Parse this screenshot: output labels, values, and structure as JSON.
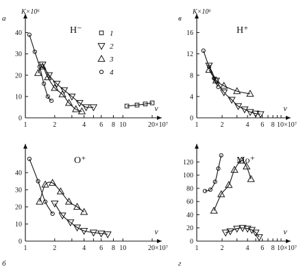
{
  "figure": {
    "ylabel": "K×10⁶",
    "xlabel": "v",
    "xunit": "×10⁷"
  },
  "chart_data": [
    {
      "id": "a",
      "panel_label": "а",
      "type": "scatter",
      "ion": "H⁻",
      "ylabel": "K×10⁶",
      "xlabel": "v",
      "xscale": "log",
      "xlim": [
        1,
        20
      ],
      "ylim": [
        0,
        45
      ],
      "xticks": [
        1,
        2,
        3,
        4,
        5,
        6,
        8,
        10,
        20
      ],
      "xticklabels": [
        {
          "v": 1,
          "t": "1"
        },
        {
          "v": 2,
          "t": "2"
        },
        {
          "v": 4,
          "t": "4"
        },
        {
          "v": 6,
          "t": "6"
        },
        {
          "v": 8,
          "t": "8"
        },
        {
          "v": 10,
          "t": "10"
        },
        {
          "v": 20,
          "t": "20×10⁷"
        }
      ],
      "yticks": [
        0,
        10,
        20,
        30,
        40
      ],
      "legend": [
        {
          "label": "1",
          "marker": "square"
        },
        {
          "label": "2",
          "marker": "triangle-down"
        },
        {
          "label": "3",
          "marker": "triangle-up"
        },
        {
          "label": "4",
          "marker": "circle"
        }
      ],
      "series": [
        {
          "marker": "circle",
          "x": [
            1.1,
            1.25,
            1.4,
            1.55,
            1.7,
            1.85
          ],
          "y": [
            39,
            31,
            24,
            16,
            10,
            8
          ]
        },
        {
          "marker": "triangle-up",
          "x": [
            1.35,
            1.5,
            1.7,
            2.0,
            2.4,
            2.8,
            3.3,
            3.8
          ],
          "y": [
            21,
            24,
            19,
            14,
            11,
            7,
            4,
            3
          ]
        },
        {
          "marker": "triangle-down",
          "x": [
            1.5,
            1.75,
            2.1,
            2.5,
            3.0,
            3.6,
            4.2,
            5.0
          ],
          "y": [
            25,
            20,
            16,
            13,
            10,
            7,
            5,
            5
          ]
        },
        {
          "marker": "square",
          "x": [
            11,
            14,
            17,
            20
          ],
          "y": [
            5.5,
            6,
            6.5,
            7
          ]
        }
      ]
    },
    {
      "id": "b",
      "panel_label": "б",
      "type": "scatter",
      "ion": "O⁺",
      "ylabel": "",
      "xlabel": "v",
      "xscale": "log",
      "xlim": [
        1,
        20
      ],
      "ylim": [
        0,
        52
      ],
      "xticks": [
        1,
        2,
        3,
        4,
        5,
        6,
        8,
        10,
        20
      ],
      "xticklabels": [
        {
          "v": 1,
          "t": "1"
        },
        {
          "v": 2,
          "t": "2"
        },
        {
          "v": 4,
          "t": "4"
        },
        {
          "v": 6,
          "t": "6"
        },
        {
          "v": 8,
          "t": "8"
        },
        {
          "v": 10,
          "t": "10"
        },
        {
          "v": 20,
          "t": "20×10⁷"
        }
      ],
      "yticks": [
        0,
        10,
        20,
        30,
        40
      ],
      "series": [
        {
          "marker": "circle",
          "x": [
            1.1,
            1.35,
            1.6,
            1.9
          ],
          "y": [
            48,
            35,
            23,
            16
          ]
        },
        {
          "marker": "triangle-up",
          "x": [
            1.4,
            1.6,
            1.9,
            2.3,
            2.8,
            3.4,
            4.0
          ],
          "y": [
            23,
            33,
            34,
            29,
            23,
            20,
            17
          ]
        },
        {
          "marker": "triangle-down",
          "x": [
            2.0,
            2.4,
            2.9,
            3.4,
            4.0,
            5.0,
            6.0,
            7.0
          ],
          "y": [
            22,
            15,
            11,
            8,
            6,
            5,
            4.5,
            4
          ]
        }
      ]
    },
    {
      "id": "v",
      "panel_label": "в",
      "type": "scatter",
      "ion": "H⁺",
      "ylabel": "K×10⁶",
      "xlabel": "v",
      "xscale": "log",
      "xlim": [
        1,
        10
      ],
      "ylim": [
        0,
        18
      ],
      "xticks": [
        1,
        2,
        3,
        4,
        5,
        6,
        7,
        8,
        9,
        10
      ],
      "xticklabels": [
        {
          "v": 1,
          "t": "1"
        },
        {
          "v": 2,
          "t": "2"
        },
        {
          "v": 4,
          "t": "4"
        },
        {
          "v": 6,
          "t": "6"
        },
        {
          "v": 8,
          "t": "8"
        },
        {
          "v": 10,
          "t": "10×10⁷"
        }
      ],
      "yticks": [
        0,
        4,
        8,
        12,
        16
      ],
      "series": [
        {
          "marker": "circle",
          "x": [
            1.2,
            1.4,
            1.6,
            1.8
          ],
          "y": [
            12.6,
            9.6,
            7.4,
            5.8
          ]
        },
        {
          "marker": "triangle-up",
          "x": [
            1.4,
            1.7,
            2.1,
            3.0,
            4.3
          ],
          "y": [
            9,
            7,
            6,
            5,
            4.5
          ]
        },
        {
          "marker": "triangle-down",
          "x": [
            1.4,
            1.7,
            2.1,
            2.6,
            3.1,
            3.7,
            4.3,
            5.0,
            5.7
          ],
          "y": [
            9.8,
            7,
            4.8,
            3.4,
            2.2,
            1.6,
            1.1,
            0.8,
            0.7
          ]
        }
      ]
    },
    {
      "id": "g",
      "panel_label": "г",
      "type": "scatter",
      "ion": "Mo⁺",
      "ylabel": "",
      "xlabel": "v",
      "xscale": "log",
      "xlim": [
        1,
        10
      ],
      "ylim": [
        0,
        135
      ],
      "xticks": [
        1,
        2,
        3,
        4,
        5,
        6,
        7,
        8,
        9,
        10
      ],
      "xticklabels": [
        {
          "v": 1,
          "t": "1"
        },
        {
          "v": 2,
          "t": "2"
        },
        {
          "v": 4,
          "t": "4"
        },
        {
          "v": 6,
          "t": "6"
        },
        {
          "v": 8,
          "t": "8"
        },
        {
          "v": 10,
          "t": "10×10⁷"
        }
      ],
      "yticks": [
        0,
        20,
        40,
        60,
        80,
        100,
        120
      ],
      "series": [
        {
          "marker": "circle",
          "x": [
            1.25,
            1.45,
            1.65,
            1.8,
            1.95
          ],
          "y": [
            76,
            78,
            90,
            110,
            130
          ]
        },
        {
          "marker": "triangle-up",
          "x": [
            1.6,
            1.95,
            2.4,
            2.8,
            3.4,
            3.9,
            4.4
          ],
          "y": [
            46,
            71,
            85,
            108,
            122,
            113,
            94
          ]
        },
        {
          "marker": "triangle-down",
          "x": [
            2.2,
            2.5,
            3.0,
            3.5,
            4.0,
            4.5,
            5.0,
            5.5
          ],
          "y": [
            13,
            15,
            19,
            20,
            19,
            17,
            13,
            6
          ]
        }
      ]
    }
  ]
}
